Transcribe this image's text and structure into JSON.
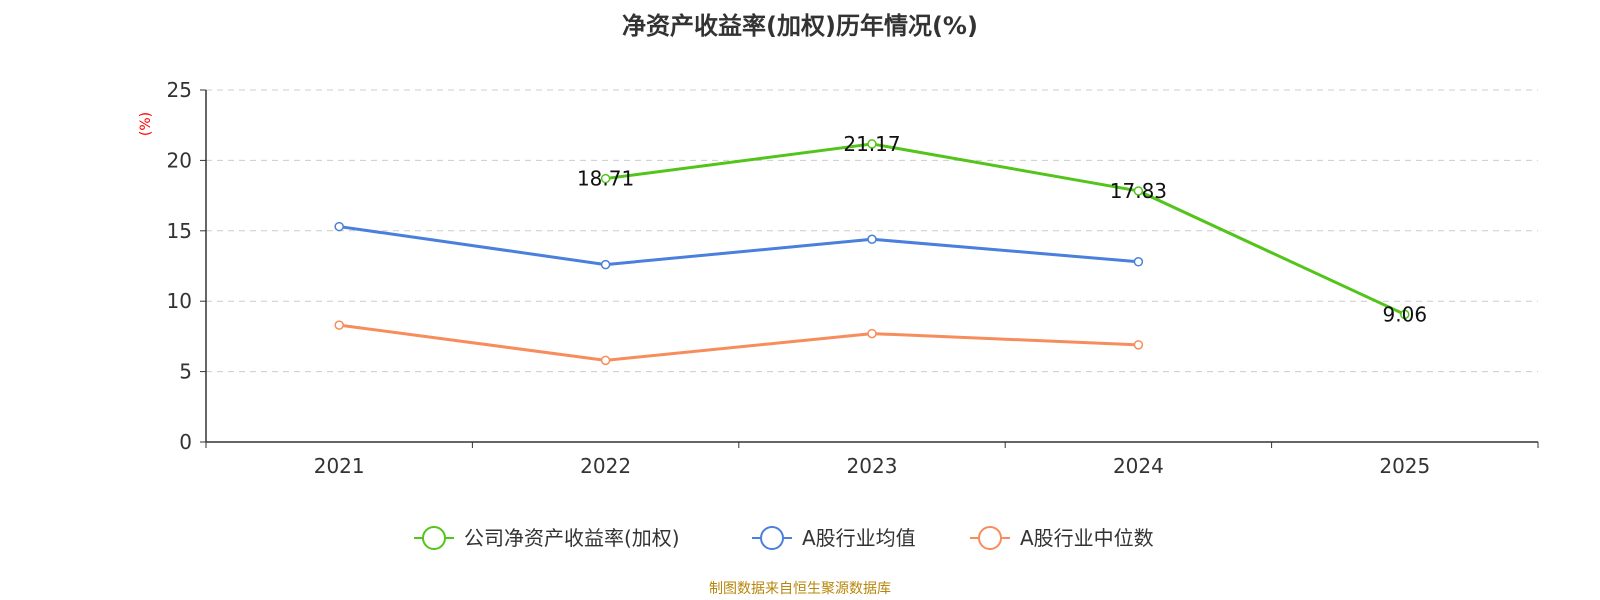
{
  "chart_data": {
    "type": "line",
    "title": "净资产收益率(加权)历年情况(%)",
    "ylabel": "(%)",
    "xlabel": "",
    "categories": [
      "2021",
      "2022",
      "2023",
      "2024",
      "2025"
    ],
    "ylim": [
      0,
      25
    ],
    "yticks": [
      0,
      5,
      10,
      15,
      20,
      25
    ],
    "grid": true,
    "legend_position": "bottom",
    "series": [
      {
        "name": "公司净资产收益率(加权)",
        "color": "#52c41a",
        "values": [
          null,
          18.71,
          21.17,
          17.83,
          9.06
        ],
        "labels": [
          "",
          "18.71",
          "21.17",
          "17.83",
          "9.06"
        ]
      },
      {
        "name": "A股行业均值",
        "color": "#4a7fdc",
        "values": [
          15.3,
          12.6,
          14.4,
          12.8,
          null
        ]
      },
      {
        "name": "A股行业中位数",
        "color": "#f78c5c",
        "values": [
          8.3,
          5.8,
          7.7,
          6.9,
          null
        ]
      }
    ]
  },
  "footer": {
    "source": "制图数据来自恒生聚源数据库"
  },
  "colors": {
    "axis": "#333333",
    "grid": "#cccccc",
    "unit": "#ff0000"
  }
}
